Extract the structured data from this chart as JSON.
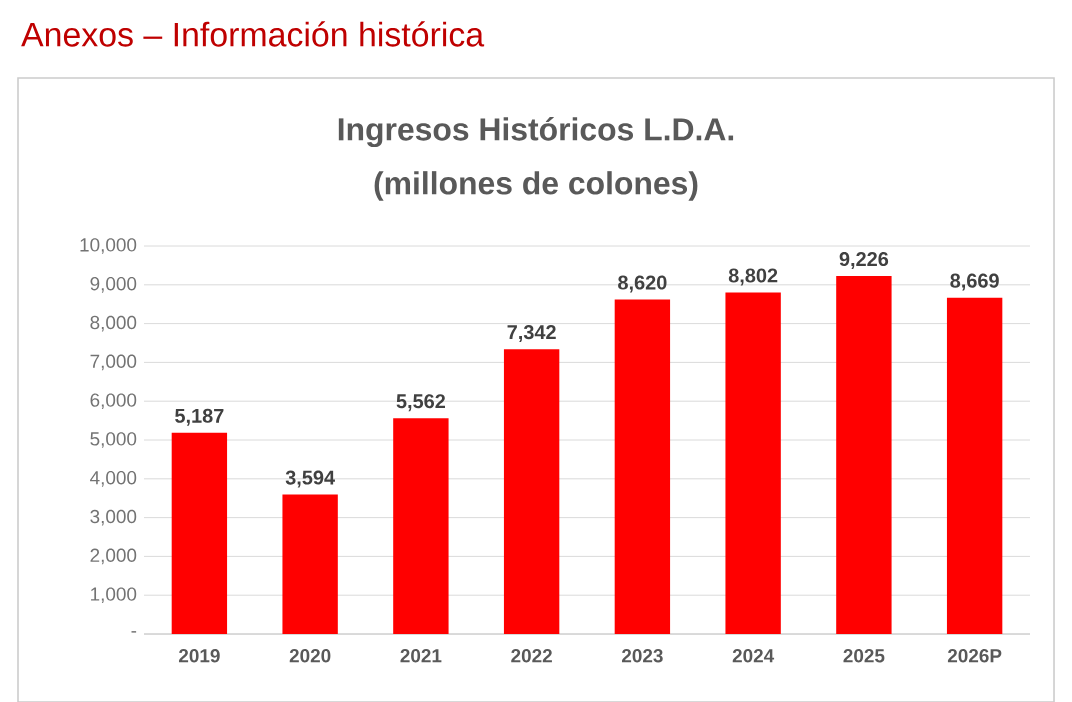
{
  "chart_data": {
    "type": "bar",
    "title": "Ingresos Históricos L.D.A.",
    "subtitle": "(millones de colones)",
    "annotations": [
      "Anexos – Información histórica"
    ],
    "categories": [
      "2019",
      "2020",
      "2021",
      "2022",
      "2023",
      "2024",
      "2025",
      "2026P"
    ],
    "values": [
      5187,
      3594,
      5562,
      7342,
      8620,
      8802,
      9226,
      8669
    ],
    "value_labels": [
      "5,187",
      "3,594",
      "5,562",
      "7,342",
      "8,620",
      "8,802",
      "9,226",
      "8,669"
    ],
    "color": "#ff0000",
    "ylim": [
      0,
      10000
    ],
    "yticks": [
      {
        "value": 0,
        "label": "-"
      },
      {
        "value": 1000,
        "label": "1,000"
      },
      {
        "value": 2000,
        "label": "2,000"
      },
      {
        "value": 3000,
        "label": "3,000"
      },
      {
        "value": 4000,
        "label": "4,000"
      },
      {
        "value": 5000,
        "label": "5,000"
      },
      {
        "value": 6000,
        "label": "6,000"
      },
      {
        "value": 7000,
        "label": "7,000"
      },
      {
        "value": 8000,
        "label": "8,000"
      },
      {
        "value": 9000,
        "label": "9,000"
      },
      {
        "value": 10000,
        "label": "10,000"
      }
    ],
    "grid": "y"
  }
}
